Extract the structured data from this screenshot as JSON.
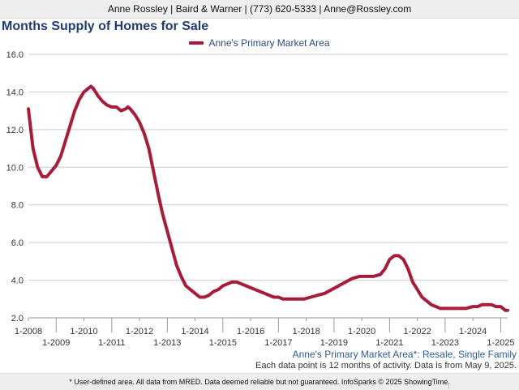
{
  "header": {
    "text": "Anne Rossley | Baird & Warner | (773) 620-5333 | Anne@Rossley.com"
  },
  "footer": {
    "text": "* User-defined area. All data from MRED. Data deemed reliable but not guaranteed. InfoSparks © 2025 ShowingTime."
  },
  "captions": {
    "area": "Anne's Primary Market Area*: Resale, Single Family",
    "note": "Each data point is 12 months of activity. Data is from May 9, 2025."
  },
  "colors": {
    "series": "#a81c3b",
    "title": "#1f3c73",
    "grid": "#cccccc"
  },
  "chart_data": {
    "type": "line",
    "title": "Months Supply of Homes for Sale",
    "xlabel": "",
    "ylabel": "",
    "ylim": [
      2.0,
      16.0
    ],
    "yticks": [
      2.0,
      4.0,
      6.0,
      8.0,
      10.0,
      12.0,
      14.0,
      16.0
    ],
    "xlim": [
      "2008-01",
      "2025-04"
    ],
    "xticks": [
      "1-2008",
      "1-2009",
      "1-2010",
      "1-2011",
      "1-2012",
      "1-2013",
      "1-2014",
      "1-2015",
      "1-2016",
      "1-2017",
      "1-2018",
      "1-2019",
      "1-2020",
      "1-2021",
      "1-2022",
      "1-2023",
      "1-2024",
      "1-2025"
    ],
    "grid": true,
    "legend": "top-center",
    "series": [
      {
        "name": "Anne's Primary Market Area",
        "points": [
          [
            "2008-01",
            13.1
          ],
          [
            "2008-03",
            11.0
          ],
          [
            "2008-05",
            10.0
          ],
          [
            "2008-07",
            9.5
          ],
          [
            "2008-09",
            9.5
          ],
          [
            "2008-11",
            9.8
          ],
          [
            "2009-01",
            10.1
          ],
          [
            "2009-03",
            10.6
          ],
          [
            "2009-05",
            11.4
          ],
          [
            "2009-07",
            12.2
          ],
          [
            "2009-09",
            13.0
          ],
          [
            "2009-11",
            13.6
          ],
          [
            "2010-01",
            14.0
          ],
          [
            "2010-03",
            14.2
          ],
          [
            "2010-04",
            14.3
          ],
          [
            "2010-05",
            14.2
          ],
          [
            "2010-07",
            13.8
          ],
          [
            "2010-09",
            13.5
          ],
          [
            "2010-11",
            13.3
          ],
          [
            "2011-01",
            13.2
          ],
          [
            "2011-03",
            13.2
          ],
          [
            "2011-05",
            13.0
          ],
          [
            "2011-07",
            13.1
          ],
          [
            "2011-08",
            13.2
          ],
          [
            "2011-09",
            13.1
          ],
          [
            "2011-11",
            12.8
          ],
          [
            "2012-01",
            12.4
          ],
          [
            "2012-03",
            11.8
          ],
          [
            "2012-05",
            11.0
          ],
          [
            "2012-07",
            9.8
          ],
          [
            "2012-09",
            8.6
          ],
          [
            "2012-11",
            7.5
          ],
          [
            "2013-01",
            6.6
          ],
          [
            "2013-03",
            5.7
          ],
          [
            "2013-05",
            4.8
          ],
          [
            "2013-07",
            4.2
          ],
          [
            "2013-09",
            3.7
          ],
          [
            "2013-11",
            3.5
          ],
          [
            "2014-01",
            3.3
          ],
          [
            "2014-03",
            3.1
          ],
          [
            "2014-05",
            3.1
          ],
          [
            "2014-07",
            3.2
          ],
          [
            "2014-09",
            3.4
          ],
          [
            "2014-11",
            3.5
          ],
          [
            "2015-01",
            3.7
          ],
          [
            "2015-03",
            3.8
          ],
          [
            "2015-05",
            3.9
          ],
          [
            "2015-07",
            3.9
          ],
          [
            "2015-09",
            3.8
          ],
          [
            "2015-11",
            3.7
          ],
          [
            "2016-01",
            3.6
          ],
          [
            "2016-03",
            3.5
          ],
          [
            "2016-05",
            3.4
          ],
          [
            "2016-07",
            3.3
          ],
          [
            "2016-09",
            3.2
          ],
          [
            "2016-11",
            3.1
          ],
          [
            "2017-01",
            3.1
          ],
          [
            "2017-03",
            3.0
          ],
          [
            "2017-06",
            3.0
          ],
          [
            "2017-09",
            3.0
          ],
          [
            "2017-12",
            3.0
          ],
          [
            "2018-03",
            3.1
          ],
          [
            "2018-06",
            3.2
          ],
          [
            "2018-09",
            3.3
          ],
          [
            "2018-12",
            3.5
          ],
          [
            "2019-03",
            3.7
          ],
          [
            "2019-06",
            3.9
          ],
          [
            "2019-09",
            4.1
          ],
          [
            "2019-12",
            4.2
          ],
          [
            "2020-03",
            4.2
          ],
          [
            "2020-06",
            4.2
          ],
          [
            "2020-09",
            4.3
          ],
          [
            "2020-11",
            4.6
          ],
          [
            "2021-01",
            5.1
          ],
          [
            "2021-03",
            5.3
          ],
          [
            "2021-05",
            5.3
          ],
          [
            "2021-07",
            5.1
          ],
          [
            "2021-09",
            4.6
          ],
          [
            "2021-11",
            3.9
          ],
          [
            "2022-01",
            3.5
          ],
          [
            "2022-03",
            3.1
          ],
          [
            "2022-05",
            2.9
          ],
          [
            "2022-07",
            2.7
          ],
          [
            "2022-09",
            2.6
          ],
          [
            "2022-11",
            2.5
          ],
          [
            "2023-03",
            2.5
          ],
          [
            "2023-07",
            2.5
          ],
          [
            "2023-10",
            2.5
          ],
          [
            "2024-01",
            2.6
          ],
          [
            "2024-03",
            2.6
          ],
          [
            "2024-05",
            2.7
          ],
          [
            "2024-07",
            2.7
          ],
          [
            "2024-09",
            2.7
          ],
          [
            "2024-11",
            2.6
          ],
          [
            "2025-01",
            2.6
          ],
          [
            "2025-03",
            2.4
          ],
          [
            "2025-04",
            2.4
          ]
        ]
      }
    ]
  }
}
